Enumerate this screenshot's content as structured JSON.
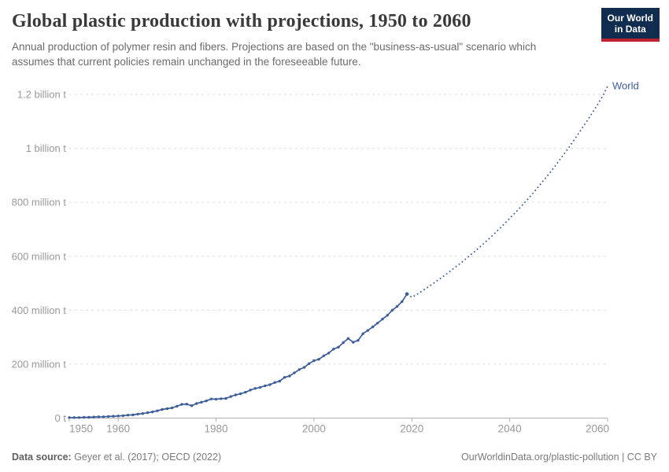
{
  "header": {
    "title": "Global plastic production with projections, 1950 to 2060",
    "subtitle": "Annual production of polymer resin and fibers. Projections are based on the \"business-as-usual\" scenario which assumes that current policies remain unchanged in the foreseeable future.",
    "logo": {
      "line1": "Our World",
      "line2": "in Data"
    }
  },
  "footer": {
    "datasource_label": "Data source:",
    "datasource_value": " Geyer et al. (2017); OECD (2022)",
    "link": "OurWorldinData.org/plastic-pollution",
    "separator": " | ",
    "license": "CC BY"
  },
  "colors": {
    "line": "#3e5e9b",
    "grid": "#dddddd",
    "axis": "#b0b0b0",
    "tick_label": "#999999",
    "logo_bg": "#102d50",
    "logo_red": "#bc2530"
  },
  "chart_data": {
    "type": "line",
    "title": "Global plastic production with projections, 1950 to 2060",
    "entity_label": "World",
    "values_unit": "million tonnes",
    "xlabel": "",
    "ylabel": "",
    "xlim": [
      1950,
      2060
    ],
    "ylim": [
      0,
      1200
    ],
    "grid": "dashed horizontal",
    "legend_position": "end-of-line label",
    "x_ticks": [
      1950,
      1960,
      1980,
      2000,
      2020,
      2040,
      2060
    ],
    "y_ticks": [
      {
        "value": 0,
        "label": "0 t"
      },
      {
        "value": 200,
        "label": "200 million t"
      },
      {
        "value": 400,
        "label": "400 million t"
      },
      {
        "value": 600,
        "label": "600 million t"
      },
      {
        "value": 800,
        "label": "800 million t"
      },
      {
        "value": 1000,
        "label": "1 billion t"
      },
      {
        "value": 1200,
        "label": "1.2 billion t"
      }
    ],
    "series": [
      {
        "name": "World — historical production",
        "style": "solid",
        "markers": true,
        "x": [
          1950,
          1951,
          1952,
          1953,
          1954,
          1955,
          1956,
          1957,
          1958,
          1959,
          1960,
          1961,
          1962,
          1963,
          1964,
          1965,
          1966,
          1967,
          1968,
          1969,
          1970,
          1971,
          1972,
          1973,
          1974,
          1975,
          1976,
          1977,
          1978,
          1979,
          1980,
          1981,
          1982,
          1983,
          1984,
          1985,
          1986,
          1987,
          1988,
          1989,
          1990,
          1991,
          1992,
          1993,
          1994,
          1995,
          1996,
          1997,
          1998,
          1999,
          2000,
          2001,
          2002,
          2003,
          2004,
          2005,
          2006,
          2007,
          2008,
          2009,
          2010,
          2011,
          2012,
          2013,
          2014,
          2015,
          2016,
          2017,
          2018,
          2019
        ],
        "values": [
          2,
          2,
          2,
          3,
          3,
          4,
          5,
          5,
          6,
          7,
          8,
          9,
          11,
          12,
          15,
          17,
          20,
          23,
          27,
          32,
          35,
          38,
          44,
          51,
          52,
          46,
          54,
          59,
          64,
          71,
          70,
          72,
          73,
          80,
          86,
          90,
          96,
          104,
          110,
          114,
          120,
          124,
          132,
          137,
          151,
          156,
          168,
          180,
          188,
          202,
          213,
          218,
          231,
          241,
          256,
          263,
          280,
          295,
          281,
          288,
          313,
          325,
          338,
          352,
          367,
          381,
          400,
          414,
          432,
          460
        ]
      },
      {
        "name": "World — business-as-usual projection",
        "style": "dotted",
        "markers": false,
        "x": [
          2019,
          2020,
          2021,
          2022,
          2023,
          2024,
          2025,
          2026,
          2027,
          2028,
          2029,
          2030,
          2031,
          2032,
          2033,
          2034,
          2035,
          2036,
          2037,
          2038,
          2039,
          2040,
          2041,
          2042,
          2043,
          2044,
          2045,
          2046,
          2047,
          2048,
          2049,
          2050,
          2051,
          2052,
          2053,
          2054,
          2055,
          2056,
          2057,
          2058,
          2059,
          2060
        ],
        "values": [
          460,
          448,
          458,
          470,
          482,
          494,
          507,
          520,
          533,
          547,
          561,
          575,
          590,
          605,
          620,
          636,
          652,
          669,
          686,
          704,
          722,
          740,
          759,
          778,
          798,
          818,
          839,
          861,
          883,
          905,
          928,
          952,
          976,
          1001,
          1027,
          1053,
          1080,
          1107,
          1135,
          1164,
          1194,
          1231
        ]
      }
    ]
  }
}
